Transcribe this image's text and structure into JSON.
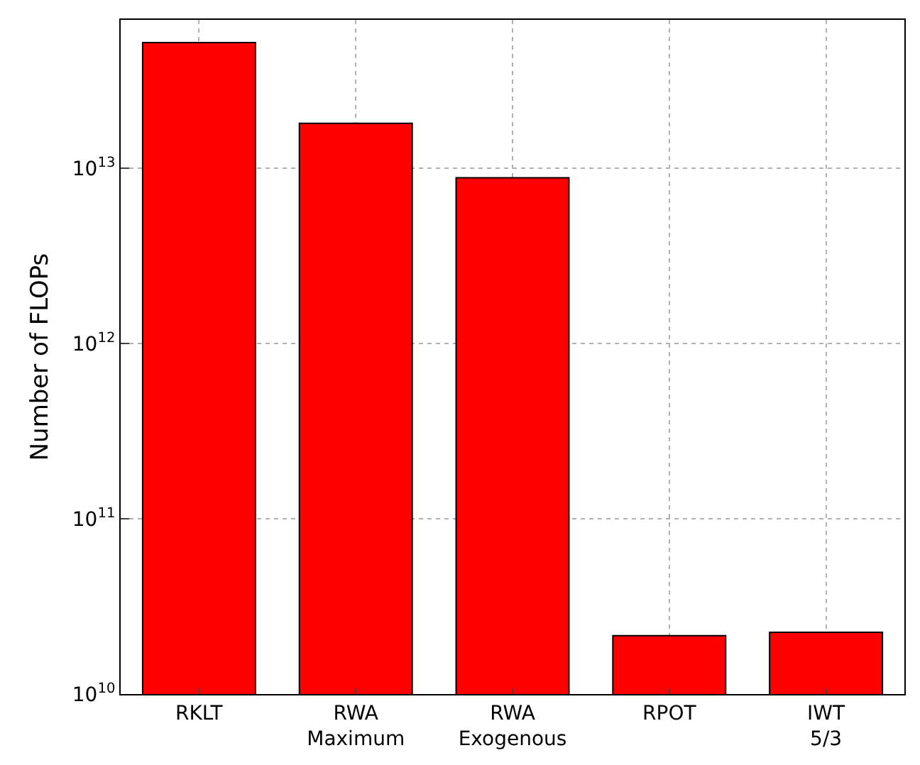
{
  "chart_data": {
    "type": "bar",
    "ylabel": "Number of FLOPs",
    "categories": [
      "RKLT",
      "RWA\nMaximum",
      "RWA\nExogenous",
      "RPOT",
      "IWT\n5/3"
    ],
    "values": [
      52000000000000.0,
      18000000000000.0,
      8800000000000.0,
      21500000000.0,
      22500000000.0
    ],
    "color": "#ff0000",
    "log": "y",
    "ylim": [
      10000000000.0,
      70000000000000.0
    ],
    "yticks": [
      {
        "value": 10000000000.0,
        "label": "10$^{10}$"
      },
      {
        "value": 100000000000.0,
        "label": "10$^{11}$"
      },
      {
        "value": 1000000000000.0,
        "label": "10$^{12}$"
      },
      {
        "value": 10000000000000.0,
        "label": "10$^{13}$"
      }
    ],
    "grid": true,
    "legend": false
  }
}
